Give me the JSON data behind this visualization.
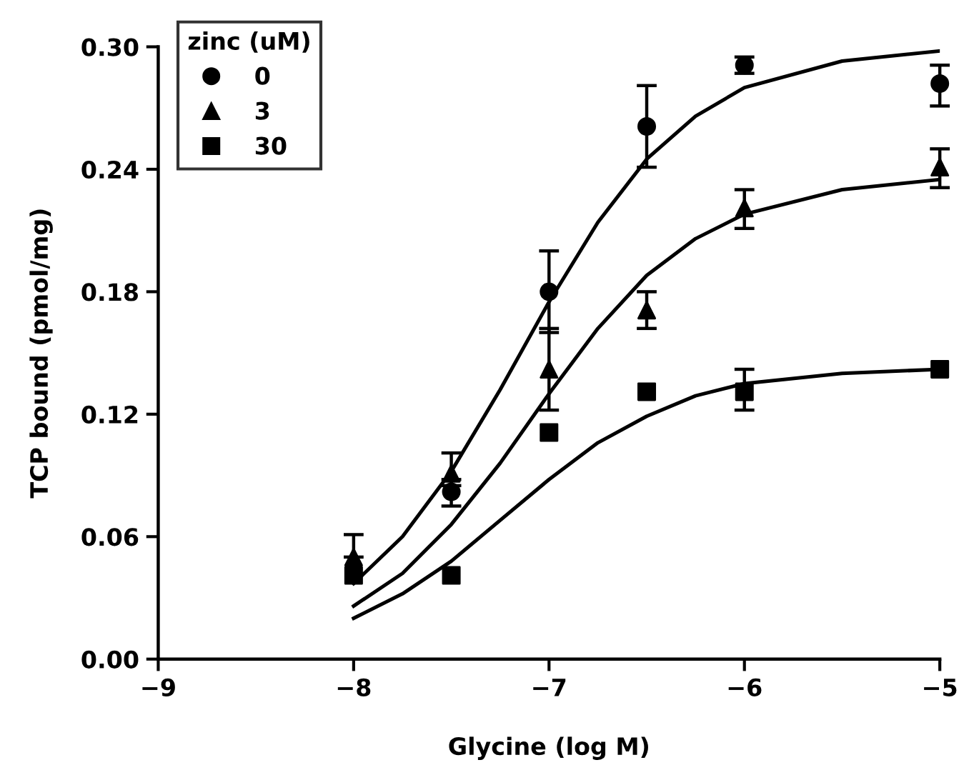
{
  "chart_data": {
    "type": "scatter",
    "xlabel": "Glycine (log M)",
    "ylabel": "TCP bound (pmol/mg)",
    "legend_title": "zinc (uM)",
    "legend": "top left",
    "grid": false,
    "x": [
      -8,
      -7.5,
      -7,
      -6.5,
      -6,
      -5
    ],
    "xlim": [
      -9,
      -5
    ],
    "xticks": [
      {
        "value": -9,
        "label": "−9"
      },
      {
        "value": -8,
        "label": "−8"
      },
      {
        "value": -7,
        "label": "−7"
      },
      {
        "value": -6,
        "label": "−6"
      },
      {
        "value": -5,
        "label": "−5"
      }
    ],
    "ylim": [
      0,
      0.3
    ],
    "yticks": [
      {
        "value": 0,
        "label": "0.00"
      },
      {
        "value": 0.06,
        "label": "0.06"
      },
      {
        "value": 0.12,
        "label": "0.12"
      },
      {
        "value": 0.18,
        "label": "0.18"
      },
      {
        "value": 0.24,
        "label": "0.24"
      },
      {
        "value": 0.3,
        "label": "0.30"
      }
    ],
    "series": [
      {
        "name": "0",
        "color": "#000000",
        "marker": "circle",
        "values": [
          null,
          0.082,
          0.18,
          0.261,
          0.291,
          0.282
        ],
        "errors": [
          null,
          [
            0.075,
            0.088
          ],
          [
            0.16,
            0.2
          ],
          [
            0.241,
            0.281
          ],
          [
            0.287,
            0.295
          ],
          [
            0.271,
            0.291
          ]
        ]
      },
      {
        "name": "3",
        "color": "#000000",
        "marker": "triangle",
        "values": [
          0.05,
          0.091,
          0.142,
          0.171,
          0.221,
          0.241
        ],
        "errors": [
          [
            0.05,
            0.061
          ],
          [
            0.085,
            0.101
          ],
          [
            0.122,
            0.162
          ],
          [
            0.162,
            0.18
          ],
          [
            0.211,
            0.23
          ],
          [
            0.231,
            0.25
          ]
        ]
      },
      {
        "name": "30",
        "color": "#000000",
        "marker": "square",
        "values": [
          0.041,
          0.041,
          0.111,
          0.131,
          0.131,
          0.142
        ],
        "errors": [
          null,
          null,
          null,
          null,
          [
            0.122,
            0.142
          ],
          null
        ]
      },
      {
        "type": "line",
        "color": "#000000",
        "marker": "none",
        "x": [
          -8,
          -7.75,
          -7.5,
          -7.25,
          -7,
          -6.75,
          -6.5,
          -6.25,
          -6,
          -5.5,
          -5
        ],
        "values": [
          0.037,
          0.06,
          0.092,
          0.132,
          0.175,
          0.214,
          0.245,
          0.266,
          0.28,
          0.293,
          0.298
        ]
      },
      {
        "type": "line",
        "color": "#000000",
        "marker": "none",
        "x": [
          -8,
          -7.75,
          -7.5,
          -7.25,
          -7,
          -6.75,
          -6.5,
          -6.25,
          -6,
          -5.5,
          -5
        ],
        "values": [
          0.026,
          0.042,
          0.066,
          0.096,
          0.13,
          0.162,
          0.188,
          0.206,
          0.218,
          0.23,
          0.235
        ]
      },
      {
        "type": "line",
        "color": "#000000",
        "marker": "none",
        "x": [
          -8,
          -7.75,
          -7.5,
          -7.25,
          -7,
          -6.75,
          -6.5,
          -6.25,
          -6,
          -5.5,
          -5
        ],
        "values": [
          0.02,
          0.032,
          0.048,
          0.068,
          0.088,
          0.106,
          0.119,
          0.129,
          0.135,
          0.14,
          0.142
        ]
      }
    ]
  }
}
